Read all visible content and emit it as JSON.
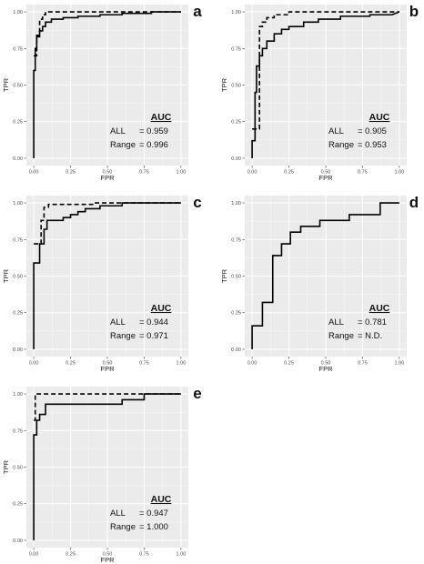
{
  "chart_data": [
    {
      "type": "line",
      "panel_label": "a",
      "xlabel": "FPR",
      "ylabel": "TPR",
      "xlim": [
        0,
        1
      ],
      "ylim": [
        0,
        1
      ],
      "x_ticks": [
        "0.00",
        "0.25",
        "0.50",
        "0.75",
        "1.00"
      ],
      "y_ticks": [
        "0.00",
        "0.25",
        "0.50",
        "0.75",
        "1.00"
      ],
      "grid": true,
      "auc_heading": "AUC",
      "auc_rows": [
        {
          "label": "ALL",
          "value": "= 0.959"
        },
        {
          "label": "Range",
          "value": "= 0.996"
        }
      ],
      "series": [
        {
          "style": "solid",
          "points": [
            [
              0,
              0
            ],
            [
              0,
              0.6
            ],
            [
              0.01,
              0.6
            ],
            [
              0.01,
              0.75
            ],
            [
              0.02,
              0.75
            ],
            [
              0.02,
              0.83
            ],
            [
              0.04,
              0.83
            ],
            [
              0.04,
              0.87
            ],
            [
              0.06,
              0.87
            ],
            [
              0.06,
              0.9
            ],
            [
              0.08,
              0.9
            ],
            [
              0.08,
              0.93
            ],
            [
              0.12,
              0.93
            ],
            [
              0.12,
              0.95
            ],
            [
              0.2,
              0.95
            ],
            [
              0.2,
              0.96
            ],
            [
              0.3,
              0.96
            ],
            [
              0.3,
              0.97
            ],
            [
              0.45,
              0.97
            ],
            [
              0.45,
              0.98
            ],
            [
              0.6,
              0.98
            ],
            [
              0.6,
              0.99
            ],
            [
              0.8,
              0.99
            ],
            [
              0.8,
              1
            ],
            [
              1,
              1
            ]
          ]
        },
        {
          "style": "dashed",
          "points": [
            [
              0,
              0.7
            ],
            [
              0.02,
              0.7
            ],
            [
              0.02,
              0.84
            ],
            [
              0.04,
              0.84
            ],
            [
              0.04,
              0.95
            ],
            [
              0.06,
              0.95
            ],
            [
              0.06,
              0.98
            ],
            [
              0.08,
              0.98
            ],
            [
              0.08,
              1
            ],
            [
              1,
              1
            ]
          ]
        }
      ]
    },
    {
      "type": "line",
      "panel_label": "b",
      "xlabel": "FPR",
      "ylabel": "TPR",
      "xlim": [
        0,
        1
      ],
      "ylim": [
        0,
        1
      ],
      "x_ticks": [
        "0.00",
        "0.25",
        "0.50",
        "0.75",
        "1.00"
      ],
      "y_ticks": [
        "0.00",
        "0.25",
        "0.50",
        "0.75",
        "1.00"
      ],
      "grid": true,
      "auc_heading": "AUC",
      "auc_rows": [
        {
          "label": "ALL",
          "value": "= 0.905"
        },
        {
          "label": "Range",
          "value": "= 0.953"
        }
      ],
      "series": [
        {
          "style": "solid",
          "points": [
            [
              0,
              0
            ],
            [
              0,
              0.12
            ],
            [
              0.02,
              0.12
            ],
            [
              0.02,
              0.45
            ],
            [
              0.03,
              0.45
            ],
            [
              0.03,
              0.63
            ],
            [
              0.05,
              0.63
            ],
            [
              0.05,
              0.7
            ],
            [
              0.07,
              0.7
            ],
            [
              0.07,
              0.75
            ],
            [
              0.1,
              0.75
            ],
            [
              0.1,
              0.8
            ],
            [
              0.15,
              0.8
            ],
            [
              0.15,
              0.85
            ],
            [
              0.2,
              0.85
            ],
            [
              0.2,
              0.88
            ],
            [
              0.25,
              0.88
            ],
            [
              0.25,
              0.9
            ],
            [
              0.35,
              0.9
            ],
            [
              0.35,
              0.93
            ],
            [
              0.45,
              0.93
            ],
            [
              0.45,
              0.95
            ],
            [
              0.6,
              0.95
            ],
            [
              0.6,
              0.97
            ],
            [
              0.8,
              0.97
            ],
            [
              0.8,
              0.98
            ],
            [
              0.95,
              0.98
            ],
            [
              1,
              1
            ]
          ]
        },
        {
          "style": "dashed",
          "points": [
            [
              0,
              0.2
            ],
            [
              0.05,
              0.2
            ],
            [
              0.05,
              0.9
            ],
            [
              0.07,
              0.9
            ],
            [
              0.07,
              0.93
            ],
            [
              0.1,
              0.93
            ],
            [
              0.1,
              0.96
            ],
            [
              0.15,
              0.96
            ],
            [
              0.15,
              0.98
            ],
            [
              0.25,
              0.98
            ],
            [
              0.25,
              1
            ],
            [
              1,
              1
            ]
          ]
        }
      ]
    },
    {
      "type": "line",
      "panel_label": "c",
      "xlabel": "FPR",
      "ylabel": "TPR",
      "xlim": [
        0,
        1
      ],
      "ylim": [
        0,
        1
      ],
      "x_ticks": [
        "0.00",
        "0.25",
        "0.50",
        "0.75",
        "1.00"
      ],
      "y_ticks": [
        "0.00",
        "0.25",
        "0.50",
        "0.75",
        "1.00"
      ],
      "grid": true,
      "auc_heading": "AUC",
      "auc_rows": [
        {
          "label": "ALL",
          "value": "= 0.944"
        },
        {
          "label": "Range",
          "value": "= 0.971"
        }
      ],
      "series": [
        {
          "style": "solid",
          "points": [
            [
              0,
              0
            ],
            [
              0,
              0.59
            ],
            [
              0.04,
              0.59
            ],
            [
              0.04,
              0.72
            ],
            [
              0.07,
              0.72
            ],
            [
              0.07,
              0.82
            ],
            [
              0.09,
              0.82
            ],
            [
              0.09,
              0.88
            ],
            [
              0.2,
              0.88
            ],
            [
              0.2,
              0.9
            ],
            [
              0.25,
              0.9
            ],
            [
              0.25,
              0.92
            ],
            [
              0.3,
              0.92
            ],
            [
              0.3,
              0.94
            ],
            [
              0.35,
              0.94
            ],
            [
              0.35,
              0.96
            ],
            [
              0.45,
              0.96
            ],
            [
              0.45,
              0.98
            ],
            [
              0.6,
              0.98
            ],
            [
              0.6,
              1
            ],
            [
              1,
              1
            ]
          ]
        },
        {
          "style": "dashed",
          "points": [
            [
              0,
              0.72
            ],
            [
              0.05,
              0.72
            ],
            [
              0.05,
              0.88
            ],
            [
              0.07,
              0.88
            ],
            [
              0.07,
              0.97
            ],
            [
              0.1,
              0.97
            ],
            [
              0.1,
              0.99
            ],
            [
              0.4,
              0.99
            ],
            [
              0.4,
              1
            ],
            [
              1,
              1
            ]
          ]
        }
      ]
    },
    {
      "type": "line",
      "panel_label": "d",
      "xlabel": "FPR",
      "ylabel": "TPR",
      "xlim": [
        0,
        1
      ],
      "ylim": [
        0,
        1
      ],
      "x_ticks": [
        "0.00",
        "0.25",
        "0.50",
        "0.75",
        "1.00"
      ],
      "y_ticks": [
        "0.00",
        "0.25",
        "0.50",
        "0.75",
        "1.00"
      ],
      "grid": true,
      "auc_heading": "AUC",
      "auc_rows": [
        {
          "label": "ALL",
          "value": "= 0.781"
        },
        {
          "label": "Range",
          "value": "=   N.D."
        }
      ],
      "series": [
        {
          "style": "solid",
          "points": [
            [
              0,
              0
            ],
            [
              0,
              0.16
            ],
            [
              0.07,
              0.16
            ],
            [
              0.07,
              0.32
            ],
            [
              0.14,
              0.32
            ],
            [
              0.14,
              0.64
            ],
            [
              0.2,
              0.64
            ],
            [
              0.2,
              0.72
            ],
            [
              0.26,
              0.72
            ],
            [
              0.26,
              0.8
            ],
            [
              0.33,
              0.8
            ],
            [
              0.33,
              0.84
            ],
            [
              0.46,
              0.84
            ],
            [
              0.46,
              0.88
            ],
            [
              0.66,
              0.88
            ],
            [
              0.66,
              0.92
            ],
            [
              0.87,
              0.92
            ],
            [
              0.87,
              1
            ],
            [
              1,
              1
            ]
          ]
        }
      ]
    },
    {
      "type": "line",
      "panel_label": "e",
      "xlabel": "FPR",
      "ylabel": "TPR",
      "xlim": [
        0,
        1
      ],
      "ylim": [
        0,
        1
      ],
      "x_ticks": [
        "0.00",
        "0.25",
        "0.50",
        "0.75",
        "1.00"
      ],
      "y_ticks": [
        "0.00",
        "0.25",
        "0.50",
        "0.75",
        "1.00"
      ],
      "grid": true,
      "auc_heading": "AUC",
      "auc_rows": [
        {
          "label": "ALL",
          "value": "= 0.947"
        },
        {
          "label": "Range",
          "value": "= 1.000"
        }
      ],
      "series": [
        {
          "style": "solid",
          "points": [
            [
              0,
              0
            ],
            [
              0,
              0.72
            ],
            [
              0.02,
              0.72
            ],
            [
              0.02,
              0.82
            ],
            [
              0.04,
              0.82
            ],
            [
              0.04,
              0.86
            ],
            [
              0.08,
              0.86
            ],
            [
              0.08,
              0.93
            ],
            [
              0.6,
              0.93
            ],
            [
              0.6,
              0.96
            ],
            [
              0.75,
              0.96
            ],
            [
              0.75,
              1
            ],
            [
              1,
              1
            ]
          ]
        },
        {
          "style": "dashed",
          "points": [
            [
              0,
              0.82
            ],
            [
              0.01,
              0.82
            ],
            [
              0.01,
              1
            ],
            [
              1,
              1
            ]
          ]
        }
      ]
    }
  ]
}
